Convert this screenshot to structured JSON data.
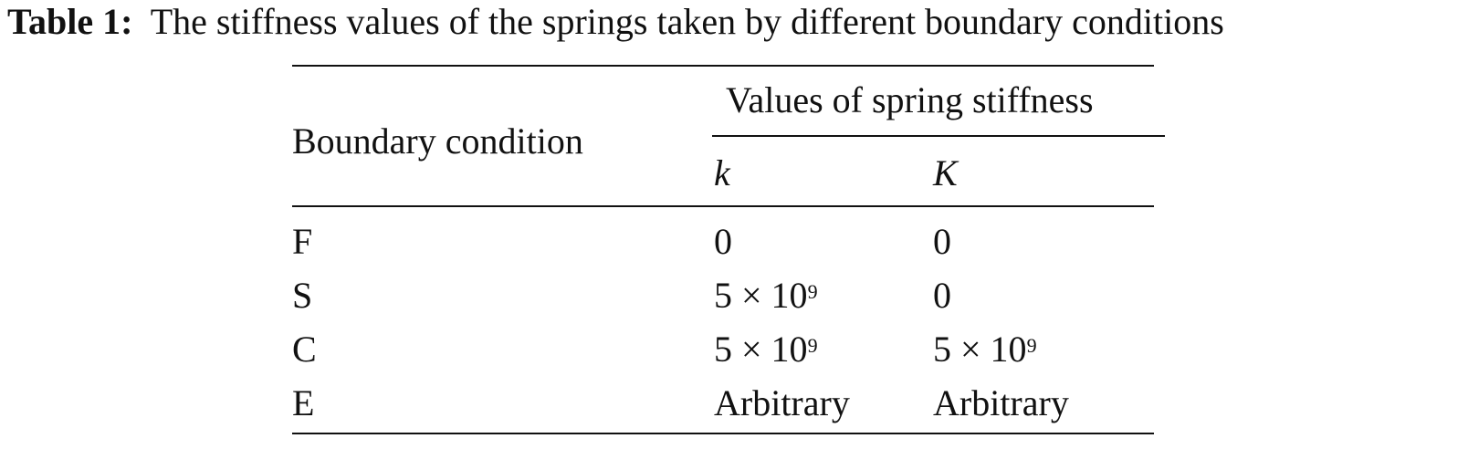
{
  "caption": {
    "label": "Table 1:",
    "text": "The stiffness values of the springs taken by different boundary conditions"
  },
  "table": {
    "header": {
      "col1": "Boundary condition",
      "group": "Values of spring stiffness",
      "sub1": "k",
      "sub2": "K"
    },
    "rows": [
      {
        "bc": "F",
        "k": "0",
        "k_exp": "",
        "K": "0",
        "K_exp": ""
      },
      {
        "bc": "S",
        "k": "5 × 10",
        "k_exp": "9",
        "K": "0",
        "K_exp": ""
      },
      {
        "bc": "C",
        "k": "5 × 10",
        "k_exp": "9",
        "K": "5 × 10",
        "K_exp": "9"
      },
      {
        "bc": "E",
        "k": "Arbitrary",
        "k_exp": "",
        "K": "Arbitrary",
        "K_exp": ""
      }
    ]
  }
}
